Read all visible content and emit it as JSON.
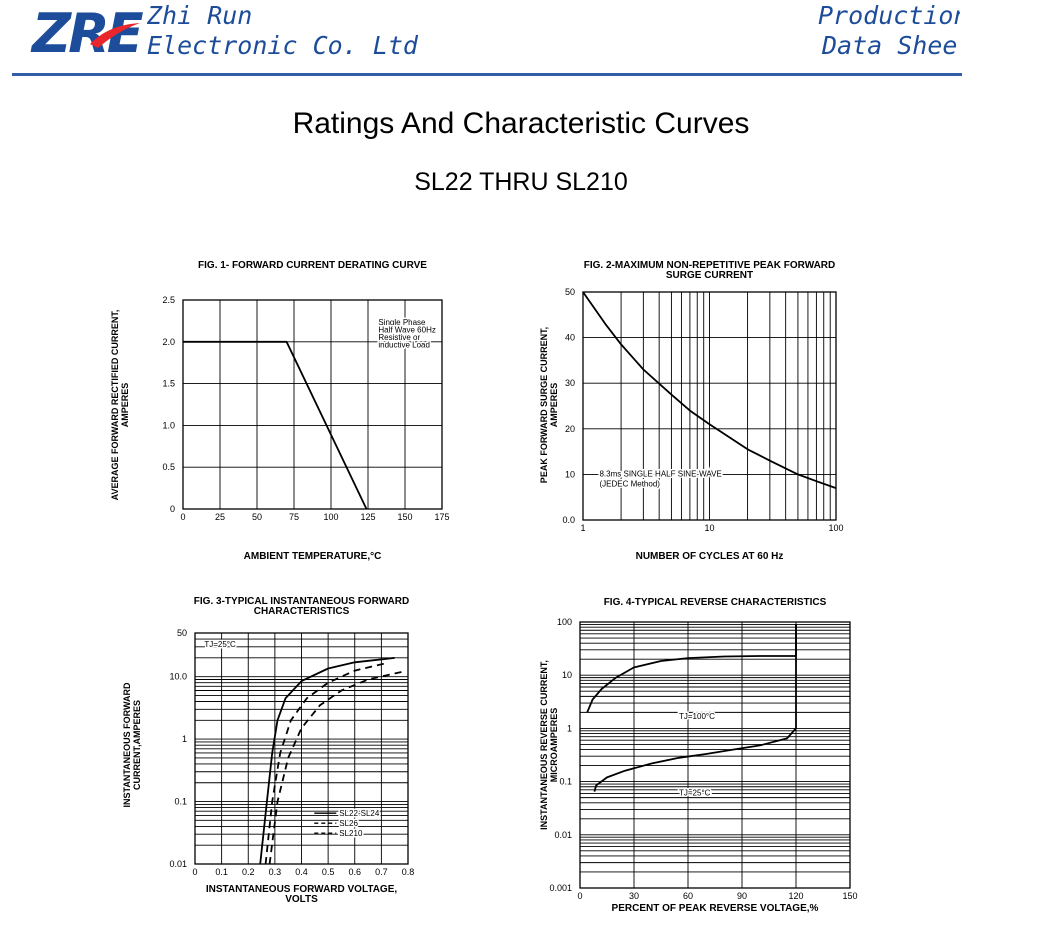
{
  "header": {
    "logo_text": "ZRE",
    "company_line1": "Zhi Run",
    "company_line2": "Electronic Co. Ltd",
    "doc_line1": "Production",
    "doc_line2": "Data Sheet",
    "brand_color": "#1d4d9a",
    "swoosh_color": "#e8262b"
  },
  "page": {
    "title": "Ratings And  Characteristic Curves",
    "subtitle": "SL22 THRU SL210"
  },
  "chart_data": [
    {
      "id": "fig1",
      "type": "line",
      "title": "FIG. 1- FORWARD CURRENT DERATING CURVE",
      "xlabel": "AMBIENT TEMPERATURE,°C",
      "ylabel": "AVERAGE FORWARD RECTIFIED CURRENT,|AMPERES",
      "xlim": [
        0,
        175
      ],
      "ylim": [
        0,
        2.5
      ],
      "x_scale": "linear",
      "y_scale": "linear",
      "x_ticks": [
        0,
        25,
        50,
        75,
        100,
        125,
        150,
        175
      ],
      "x_tick_labels": [
        "0",
        "25",
        "50",
        "75",
        "100",
        "125",
        "150",
        "175"
      ],
      "y_ticks": [
        0,
        0.5,
        1.0,
        1.5,
        2.0,
        2.5
      ],
      "y_tick_labels": [
        "0",
        "0.5",
        "1.0",
        "1.5",
        "2.0",
        "2.5"
      ],
      "grid": true,
      "series": [
        {
          "x": [
            0,
            70,
            124
          ],
          "y": [
            2.0,
            2.0,
            0
          ],
          "style": "solid"
        }
      ],
      "annotations": [
        {
          "text": "Single Phase",
          "x": 132,
          "y": 2.2
        },
        {
          "text": "Half Wave 60Hz",
          "x": 132,
          "y": 2.11
        },
        {
          "text": "Resistive or",
          "x": 132,
          "y": 2.02
        },
        {
          "text": "inductive Load",
          "x": 132,
          "y": 1.93
        }
      ]
    },
    {
      "id": "fig2",
      "type": "line",
      "title": "FIG. 2-MAXIMUM NON-REPETITIVE PEAK FORWARD|SURGE CURRENT",
      "xlabel": "NUMBER OF CYCLES AT 60 Hz",
      "ylabel": "PEAK  FORWARD SURGE CURRENT,|AMPERES",
      "xlim": [
        1,
        100
      ],
      "ylim": [
        0,
        50
      ],
      "x_scale": "log",
      "y_scale": "linear",
      "x_ticks": [
        1,
        10,
        100
      ],
      "x_tick_labels": [
        "1",
        "10",
        "100"
      ],
      "y_ticks": [
        0,
        10,
        20,
        30,
        40,
        50
      ],
      "y_tick_labels": [
        "0.0",
        "10",
        "20",
        "30",
        "40",
        "50"
      ],
      "grid": true,
      "series": [
        {
          "x": [
            1,
            1.5,
            2,
            3,
            5,
            7,
            10,
            20,
            30,
            50,
            70,
            100
          ],
          "y": [
            50,
            43,
            38.5,
            33,
            27.5,
            24,
            21,
            15.5,
            13,
            10,
            8.5,
            7
          ],
          "style": "solid"
        }
      ],
      "annotations": [
        {
          "text": "8.3ms SINGLE HALF SINE-WAVE",
          "x": 1.35,
          "y": 9.5
        },
        {
          "text": "(JEDEC Method)",
          "x": 1.35,
          "y": 7.4
        }
      ]
    },
    {
      "id": "fig3",
      "type": "line",
      "title": "FIG. 3-TYPICAL INSTANTANEOUS FORWARD|CHARACTERISTICS",
      "xlabel": "INSTANTANEOUS FORWARD VOLTAGE,|VOLTS",
      "ylabel": "INSTANTANEOUS FORWARD|CURRENT,AMPERES",
      "xlim": [
        0,
        0.8
      ],
      "ylim": [
        0.01,
        50
      ],
      "x_scale": "linear",
      "y_scale": "log",
      "x_ticks": [
        0,
        0.1,
        0.2,
        0.3,
        0.4,
        0.5,
        0.6,
        0.7,
        0.8
      ],
      "x_tick_labels": [
        "0",
        "0.1",
        "0.2",
        "0.3",
        "0.4",
        "0.5",
        "0.6",
        "0.7",
        "0.8"
      ],
      "y_ticks": [
        0.01,
        0.1,
        1,
        10,
        50
      ],
      "y_tick_labels": [
        "0.01",
        "0.1",
        "1",
        "10.0",
        "50"
      ],
      "grid": true,
      "series": [
        {
          "name": "SL22-SL24",
          "style": "solid",
          "x": [
            0.245,
            0.27,
            0.29,
            0.31,
            0.34,
            0.4,
            0.5,
            0.6,
            0.75
          ],
          "y": [
            0.01,
            0.1,
            0.6,
            2.0,
            4.5,
            8.5,
            13.5,
            17,
            20
          ]
        },
        {
          "name": "SL26",
          "style": "dashed",
          "x": [
            0.265,
            0.29,
            0.32,
            0.36,
            0.42,
            0.5,
            0.6,
            0.72
          ],
          "y": [
            0.01,
            0.1,
            0.6,
            2.0,
            4.5,
            8,
            12.5,
            16.5
          ]
        },
        {
          "name": "SL210",
          "style": "dashed",
          "x": [
            0.28,
            0.31,
            0.35,
            0.4,
            0.47,
            0.55,
            0.65,
            0.78
          ],
          "y": [
            0.01,
            0.1,
            0.5,
            1.5,
            3.5,
            6,
            9,
            12
          ]
        }
      ],
      "annotations": [
        {
          "text": "TJ=25°C",
          "x": 0.035,
          "y": 30
        }
      ]
    },
    {
      "id": "fig4",
      "type": "line",
      "title": "FIG. 4-TYPICAL REVERSE CHARACTERISTICS",
      "xlabel": "PERCENT OF PEAK REVERSE VOLTAGE,%",
      "ylabel": "INSTANTANEOUS REVERSE CURRENT,|MICROAMPERES",
      "xlim": [
        0,
        150
      ],
      "ylim": [
        0.001,
        100
      ],
      "x_scale": "linear",
      "y_scale": "log",
      "x_ticks": [
        0,
        30,
        60,
        90,
        120,
        150
      ],
      "x_tick_labels": [
        "0",
        "30",
        "60",
        "90",
        "120",
        "150"
      ],
      "y_ticks": [
        0.001,
        0.01,
        0.1,
        1,
        10,
        100
      ],
      "y_tick_labels": [
        "0.001",
        "0.01",
        "0.1",
        "1",
        "10",
        "100"
      ],
      "grid": true,
      "series": [
        {
          "name": "TJ=100°C",
          "style": "solid",
          "x": [
            4,
            7,
            12,
            20,
            30,
            45,
            60,
            80,
            100,
            120,
            120
          ],
          "y": [
            2.0,
            3.5,
            5.5,
            9,
            14,
            18.5,
            21,
            22.5,
            23,
            23,
            90
          ]
        },
        {
          "name": "TJ=25°C",
          "style": "solid",
          "x": [
            8,
            9,
            15,
            25,
            40,
            55,
            70,
            85,
            100,
            115,
            120,
            120
          ],
          "y": [
            0.065,
            0.085,
            0.12,
            0.16,
            0.22,
            0.28,
            0.33,
            0.4,
            0.48,
            0.65,
            1.0,
            90
          ]
        }
      ],
      "annotations": [
        {
          "text": "TJ=100°C",
          "x": 55,
          "y": 1.5
        },
        {
          "text": "TJ=25°C",
          "x": 55,
          "y": 0.055
        }
      ]
    }
  ]
}
